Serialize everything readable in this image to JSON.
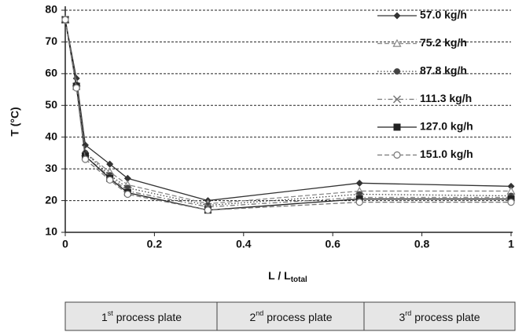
{
  "chart_data": {
    "type": "line",
    "ylabel": "T (°C)",
    "xlabel": {
      "main": "L / L",
      "sub": "total"
    },
    "xlim": [
      0,
      1
    ],
    "xticks": [
      0,
      0.2,
      0.4,
      0.6,
      0.8,
      1
    ],
    "ylim": [
      10,
      80
    ],
    "yticks": [
      10,
      20,
      30,
      40,
      50,
      60,
      70,
      80
    ],
    "grid": true,
    "legend": "upper right",
    "x": [
      0,
      0.025,
      0.045,
      0.1,
      0.14,
      0.32,
      0.66,
      1
    ],
    "series": [
      {
        "name": "57.0 kg/h",
        "color": "#333333",
        "dash": "solid",
        "marker": "diamond",
        "values": [
          77,
          58.5,
          37.5,
          31.5,
          27,
          20,
          25.5,
          24.5
        ]
      },
      {
        "name": "75.2 kg/h",
        "color": "#888888",
        "dash": "dashed",
        "marker": "triangle-open",
        "values": [
          77,
          57,
          35,
          29,
          25,
          19,
          23,
          23
        ]
      },
      {
        "name": "87.8 kg/h",
        "color": "#444444",
        "dash": "dotted",
        "marker": "circle",
        "values": [
          77,
          56.5,
          35,
          28,
          24,
          18.5,
          22,
          21.5
        ]
      },
      {
        "name": "111.3 kg/h",
        "color": "#777777",
        "dash": "dashdot",
        "marker": "x",
        "values": [
          77,
          56,
          34,
          27.5,
          23,
          18,
          21,
          21
        ]
      },
      {
        "name": "127.0 kg/h",
        "color": "#222222",
        "dash": "solid",
        "marker": "square",
        "values": [
          77,
          56,
          34,
          27,
          22.5,
          17,
          20.5,
          20.5
        ]
      },
      {
        "name": "151.0 kg/h",
        "color": "#777777",
        "dash": "dashed",
        "marker": "circle-open",
        "values": [
          77,
          55.5,
          33,
          26.5,
          22,
          17,
          19.5,
          19.5
        ]
      }
    ],
    "annotations": [
      {
        "num": "1",
        "sup": "st",
        "text": "process plate"
      },
      {
        "num": "2",
        "sup": "nd",
        "text": "process plate"
      },
      {
        "num": "3",
        "sup": "rd",
        "text": "process plate"
      }
    ]
  }
}
